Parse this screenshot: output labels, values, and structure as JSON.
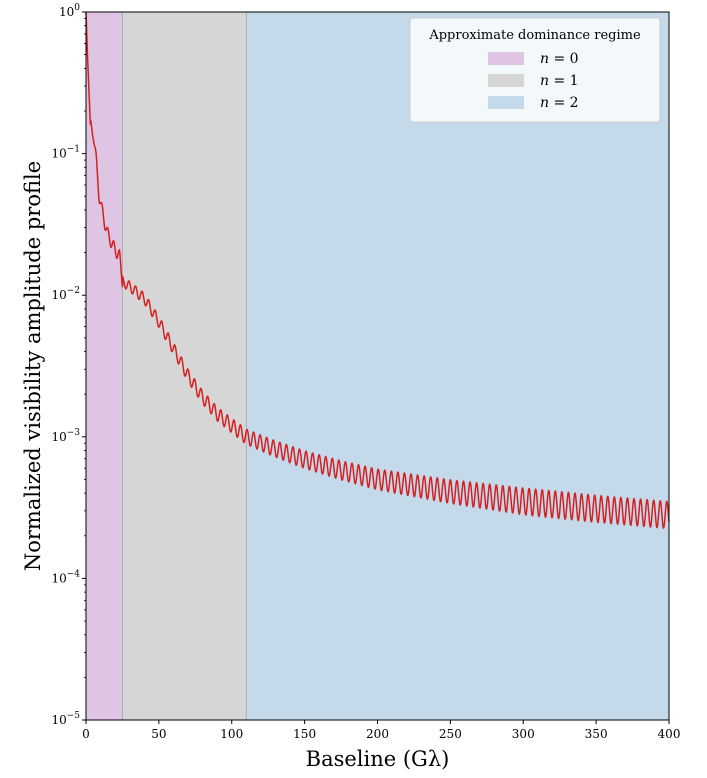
{
  "chart_data": {
    "type": "line",
    "title": "",
    "xlabel": "Baseline (Gλ)",
    "ylabel": "Normalized visibility amplitude profile",
    "xlim": [
      0,
      400
    ],
    "ylim": [
      1e-05,
      1
    ],
    "yscale": "log",
    "grid": false,
    "x_ticks": [
      0,
      50,
      100,
      150,
      200,
      250,
      300,
      350,
      400
    ],
    "x_tick_labels": [
      "0",
      "50",
      "100",
      "150",
      "200",
      "250",
      "300",
      "350",
      "400"
    ],
    "y_ticks": [
      1e-05,
      0.0001,
      0.001,
      0.01,
      0.1,
      1
    ],
    "y_tick_labels": [
      {
        "base": "10",
        "exp": "−5"
      },
      {
        "base": "10",
        "exp": "−4"
      },
      {
        "base": "10",
        "exp": "−3"
      },
      {
        "base": "10",
        "exp": "−2"
      },
      {
        "base": "10",
        "exp": "−1"
      },
      {
        "base": "10",
        "exp": "0"
      }
    ],
    "regions": [
      {
        "label_var": "n",
        "label_eq": " = ",
        "label_val": "0",
        "x_start": 0,
        "x_end": 25,
        "color": "#dec5e3"
      },
      {
        "label_var": "n",
        "label_eq": " = ",
        "label_val": "1",
        "x_start": 25,
        "x_end": 110,
        "color": "#d6d6d6"
      },
      {
        "label_var": "n",
        "label_eq": " = ",
        "label_val": "2",
        "x_start": 110,
        "x_end": 400,
        "color": "#c4d9ea"
      }
    ],
    "legend": {
      "title": "Approximate dominance regime",
      "position": "upper right"
    },
    "series": [
      {
        "color": "#d62020",
        "x": [
          0,
          1,
          3,
          5,
          7,
          9,
          11,
          13,
          15,
          17,
          19,
          21,
          23,
          25,
          30,
          40,
          50,
          60,
          70,
          80,
          90,
          100,
          110,
          130,
          150,
          175,
          200,
          250,
          300,
          350,
          400
        ],
        "y": [
          1.0,
          0.5,
          0.16,
          0.14,
          0.09,
          0.05,
          0.04,
          0.032,
          0.027,
          0.024,
          0.022,
          0.02,
          0.019,
          0.0125,
          0.0115,
          0.0095,
          0.0065,
          0.0042,
          0.0027,
          0.0019,
          0.00145,
          0.0012,
          0.001,
          0.00082,
          0.00069,
          0.00058,
          0.0005,
          0.00041,
          0.00035,
          0.00031,
          0.00028
        ]
      }
    ],
    "oscillation": {
      "period": 4.5,
      "start": 25
    }
  }
}
